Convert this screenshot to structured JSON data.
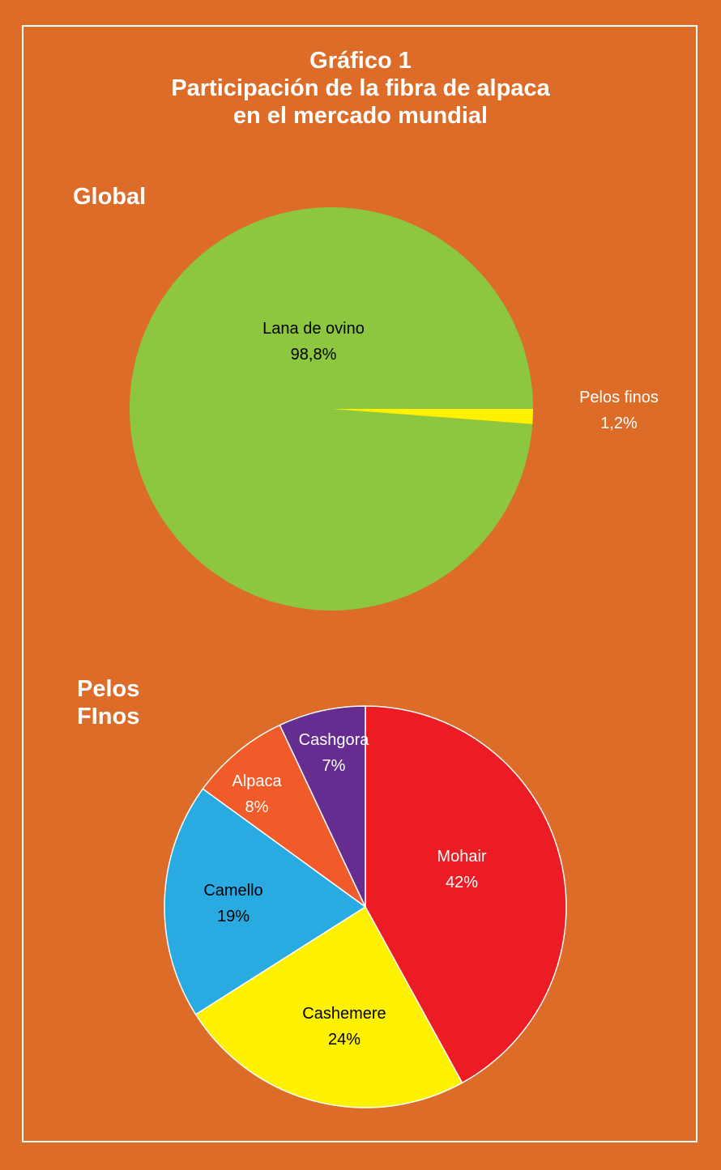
{
  "title": {
    "line1": "Gráfico 1",
    "line2": "Participación de la fibra de alpaca",
    "line3": "en el mercado mundial"
  },
  "colors": {
    "background": "#dc6c27",
    "frame": "#ffffff"
  },
  "chart_data": [
    {
      "type": "pie",
      "heading": "Global",
      "slices": [
        {
          "label": "Lana de ovino",
          "value": 98.8,
          "display": "98,8%",
          "color": "#8dc63f",
          "label_color": "#000000"
        },
        {
          "label": "Pelos finos",
          "value": 1.2,
          "display": "1,2%",
          "color": "#fff200",
          "label_color": "#ffffff"
        }
      ]
    },
    {
      "type": "pie",
      "heading_line1": "Pelos",
      "heading_line2": "FInos",
      "slices": [
        {
          "label": "Mohair",
          "value": 42,
          "display": "42%",
          "color": "#ed1c24",
          "label_color": "#ffffff"
        },
        {
          "label": "Cashemere",
          "value": 24,
          "display": "24%",
          "color": "#fff200",
          "label_color": "#000000"
        },
        {
          "label": "Camello",
          "value": 19,
          "display": "19%",
          "color": "#29abe2",
          "label_color": "#000000"
        },
        {
          "label": "Alpaca",
          "value": 8,
          "display": "8%",
          "color": "#f15a29",
          "label_color": "#ffffff"
        },
        {
          "label": "Cashgora",
          "value": 7,
          "display": "7%",
          "color": "#662d91",
          "label_color": "#ffffff"
        }
      ]
    }
  ]
}
